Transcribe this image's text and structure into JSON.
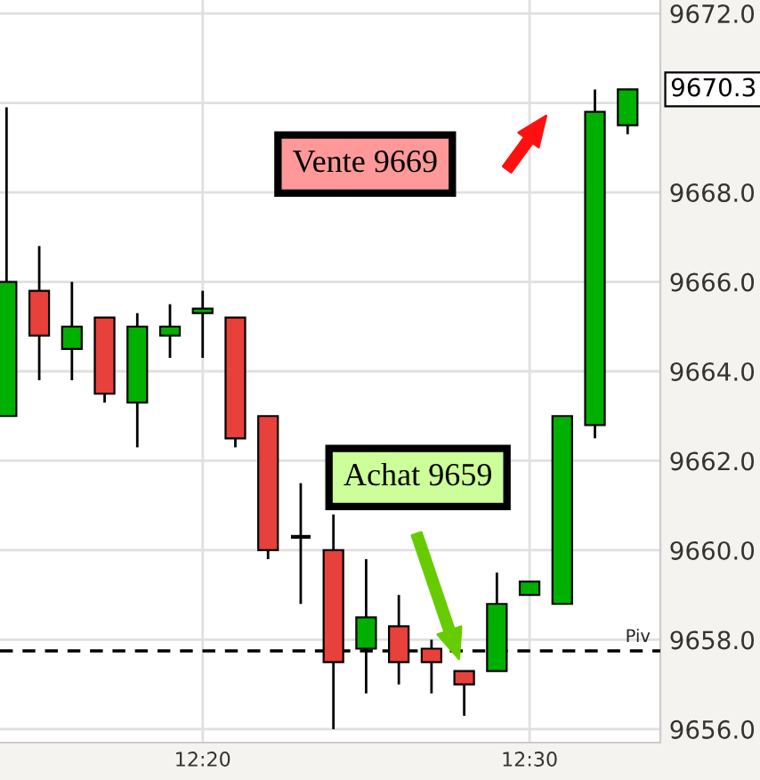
{
  "chart_data": {
    "type": "candlestick",
    "categories": [
      null,
      null,
      null,
      null,
      null,
      null,
      "12:20",
      null,
      null,
      null,
      null,
      null,
      null,
      null,
      null,
      null,
      "12:30",
      null,
      null,
      null
    ],
    "ohlc": [
      [
        9663.0,
        9669.9,
        9663.0,
        9666.0
      ],
      [
        9665.8,
        9666.8,
        9663.8,
        9664.8
      ],
      [
        9664.5,
        9666.0,
        9663.8,
        9665.0
      ],
      [
        9665.2,
        9665.2,
        9663.3,
        9663.5
      ],
      [
        9663.3,
        9665.3,
        9662.3,
        9665.0
      ],
      [
        9664.8,
        9665.5,
        9664.3,
        9665.0
      ],
      [
        9665.3,
        9665.8,
        9664.3,
        9665.4
      ],
      [
        9665.2,
        9665.2,
        9662.3,
        9662.5
      ],
      [
        9663.0,
        9663.0,
        9659.8,
        9660.0
      ],
      [
        9660.3,
        9661.5,
        9658.8,
        9660.3
      ],
      [
        9660.0,
        9660.8,
        9656.0,
        9657.5
      ],
      [
        9657.8,
        9659.8,
        9656.8,
        9658.5
      ],
      [
        9658.3,
        9659.0,
        9657.0,
        9657.5
      ],
      [
        9657.8,
        9658.0,
        9656.8,
        9657.5
      ],
      [
        9657.3,
        9657.3,
        9656.3,
        9657.0
      ],
      [
        9657.3,
        9659.5,
        9657.3,
        9658.8
      ],
      [
        9659.0,
        9659.3,
        9659.0,
        9659.3
      ],
      [
        9658.8,
        9663.0,
        9658.8,
        9663.0
      ],
      [
        9662.8,
        9670.3,
        9662.5,
        9669.8
      ],
      [
        9669.5,
        9670.3,
        9669.3,
        9670.3
      ]
    ],
    "colors": [
      "#00b000",
      "#e8403a",
      "#00b000",
      "#e8403a",
      "#00b000",
      "#00b000",
      "#00b000",
      "#e8403a",
      "#e8403a",
      "#000000",
      "#e8403a",
      "#00b000",
      "#e8403a",
      "#e8403a",
      "#e8403a",
      "#00b000",
      "#00b000",
      "#00b000",
      "#00b000",
      "#00b000"
    ],
    "ylim": [
      9655.7,
      9672.3
    ],
    "yticks": [
      {
        "value": 9656,
        "label": "9656.0"
      },
      {
        "value": 9658,
        "label": "9658.0"
      },
      {
        "value": 9660,
        "label": "9660.0"
      },
      {
        "value": 9662,
        "label": "9662.0"
      },
      {
        "value": 9664,
        "label": "9664.0"
      },
      {
        "value": 9666,
        "label": "9666.0"
      },
      {
        "value": 9668,
        "label": "9668.0"
      },
      {
        "value": 9670,
        "label": null
      },
      {
        "value": 9672,
        "label": "9672.0"
      }
    ],
    "grid": true,
    "ref_lines": [
      {
        "axis": "y",
        "value": 9657.75,
        "label": "Piv",
        "color": "#000000",
        "line_style": "dashed"
      }
    ],
    "annotations": [
      "Vente 9669",
      "Achat 9659",
      "9670.3"
    ]
  }
}
